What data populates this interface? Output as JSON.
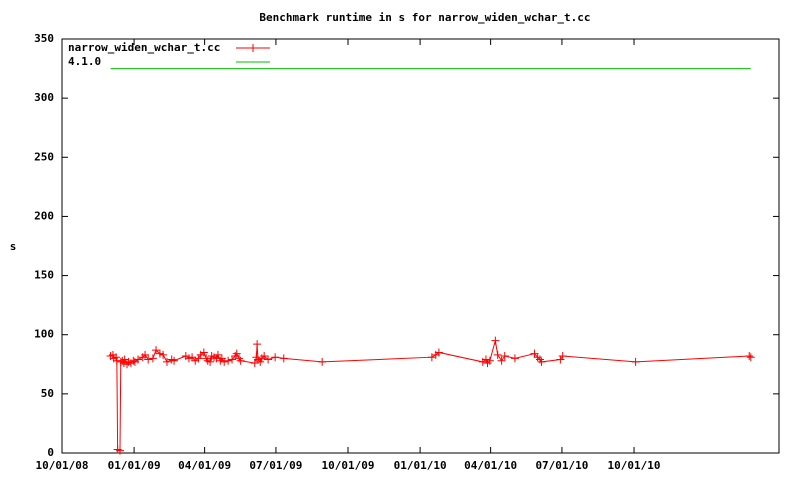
{
  "chart_data": {
    "type": "line",
    "title": "Benchmark runtime in s for narrow_widen_wchar_t.cc",
    "y_label": "s",
    "xlim": [
      "2008-10-01",
      "2011-04-04"
    ],
    "xticks": [
      {
        "value": "2008-10-01",
        "label": "10/01/08"
      },
      {
        "value": "2009-01-01",
        "label": "01/01/09"
      },
      {
        "value": "2009-04-01",
        "label": "04/01/09"
      },
      {
        "value": "2009-07-01",
        "label": "07/01/09"
      },
      {
        "value": "2009-10-01",
        "label": "10/01/09"
      },
      {
        "value": "2010-01-01",
        "label": "01/01/10"
      },
      {
        "value": "2010-04-01",
        "label": "04/01/10"
      },
      {
        "value": "2010-07-01",
        "label": "07/01/10"
      },
      {
        "value": "2010-10-01",
        "label": "10/01/10"
      }
    ],
    "ylim": [
      0,
      350
    ],
    "yticks": [
      0,
      50,
      100,
      150,
      200,
      250,
      300,
      350
    ],
    "grid": false,
    "legend": "top-left",
    "series": [
      {
        "name": "narrow_widen_wchar_t.cc",
        "color": "#ff0000",
        "markers": true,
        "x": [
          "2008-12-02",
          "2008-12-05",
          "2008-12-06",
          "2008-12-09",
          "2008-12-10",
          "2008-12-11",
          "2008-12-14",
          "2008-12-15",
          "2008-12-17",
          "2008-12-19",
          "2008-12-20",
          "2008-12-23",
          "2008-12-25",
          "2008-12-28",
          "2008-12-31",
          "2009-01-02",
          "2009-01-06",
          "2009-01-12",
          "2009-01-15",
          "2009-01-19",
          "2009-01-25",
          "2009-01-29",
          "2009-02-03",
          "2009-02-07",
          "2009-02-12",
          "2009-02-18",
          "2009-02-21",
          "2009-03-08",
          "2009-03-12",
          "2009-03-16",
          "2009-03-20",
          "2009-03-24",
          "2009-03-27",
          "2009-03-31",
          "2009-04-03",
          "2009-04-05",
          "2009-04-08",
          "2009-04-10",
          "2009-04-13",
          "2009-04-16",
          "2009-04-18",
          "2009-04-21",
          "2009-04-23",
          "2009-04-26",
          "2009-05-01",
          "2009-05-06",
          "2009-05-10",
          "2009-05-12",
          "2009-05-15",
          "2009-05-17",
          "2009-06-04",
          "2009-06-06",
          "2009-06-07",
          "2009-06-08",
          "2009-06-11",
          "2009-06-13",
          "2009-06-16",
          "2009-06-21",
          "2009-06-30",
          "2009-07-11",
          "2009-08-29",
          "2010-01-16",
          "2010-01-21",
          "2010-01-25",
          "2010-03-22",
          "2010-03-26",
          "2010-03-28",
          "2010-03-31",
          "2010-04-07",
          "2010-04-10",
          "2010-04-15",
          "2010-04-19",
          "2010-05-02",
          "2010-05-27",
          "2010-05-31",
          "2010-06-03",
          "2010-06-05",
          "2010-06-29",
          "2010-07-02",
          "2010-10-03",
          "2011-02-25",
          "2011-02-27"
        ],
        "values": [
          82,
          83,
          80,
          81,
          78,
          3,
          2,
          77,
          78,
          76,
          79,
          75,
          77,
          76,
          78,
          77,
          79,
          81,
          83,
          79,
          80,
          87,
          84,
          83,
          77,
          79,
          78,
          82,
          80,
          81,
          78,
          80,
          83,
          85,
          80,
          78,
          77,
          82,
          81,
          80,
          83,
          78,
          80,
          77,
          78,
          79,
          82,
          84,
          80,
          78,
          76,
          81,
          92,
          79,
          77,
          80,
          82,
          79,
          81,
          80,
          77,
          81,
          83,
          85,
          77,
          79,
          76,
          78,
          95,
          83,
          78,
          82,
          80,
          84,
          81,
          79,
          77,
          79,
          82,
          77,
          82,
          81
        ]
      },
      {
        "name": "4.1.0",
        "color": "#00c000",
        "markers": false,
        "x": [
          "2008-12-02",
          "2011-02-27"
        ],
        "values": [
          325,
          325
        ]
      }
    ]
  }
}
